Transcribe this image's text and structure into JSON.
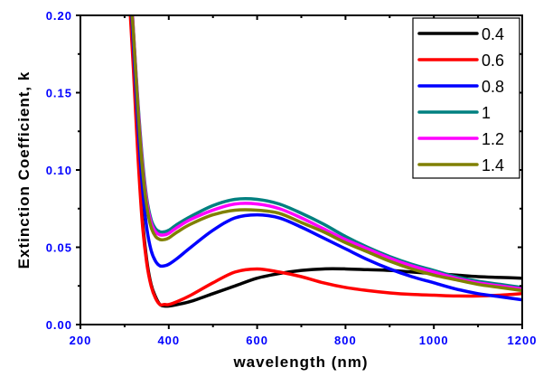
{
  "chart_data": {
    "type": "line",
    "title": "",
    "xlabel": "wavelength (nm)",
    "ylabel": "Extinction Coefficient, k",
    "xlim": [
      200,
      1200
    ],
    "ylim": [
      0.0,
      0.2
    ],
    "x_ticks": [
      200,
      400,
      600,
      800,
      1000,
      1200
    ],
    "x_tick_labels": [
      "200",
      "400",
      "600",
      "800",
      "1000",
      "1200"
    ],
    "y_ticks": [
      0.0,
      0.05,
      0.1,
      0.15,
      0.2
    ],
    "y_tick_labels": [
      "0.00",
      "0.05",
      "0.10",
      "0.15",
      "0.20"
    ],
    "grid": false,
    "legend_position": "top-right",
    "series": [
      {
        "name": "0.4",
        "color": "#000000",
        "x": [
          315,
          320,
          330,
          340,
          350,
          360,
          370,
          380,
          390,
          400,
          420,
          450,
          500,
          550,
          600,
          650,
          700,
          750,
          800,
          850,
          900,
          950,
          1000,
          1050,
          1100,
          1150,
          1200
        ],
        "y": [
          0.2,
          0.17,
          0.115,
          0.07,
          0.042,
          0.026,
          0.018,
          0.013,
          0.012,
          0.012,
          0.013,
          0.015,
          0.02,
          0.025,
          0.03,
          0.033,
          0.035,
          0.036,
          0.036,
          0.0355,
          0.035,
          0.034,
          0.033,
          0.032,
          0.031,
          0.0305,
          0.03
        ]
      },
      {
        "name": "0.6",
        "color": "#ff0000",
        "x": [
          313,
          320,
          330,
          340,
          350,
          360,
          370,
          380,
          390,
          400,
          420,
          450,
          500,
          550,
          600,
          650,
          700,
          750,
          800,
          850,
          900,
          950,
          1000,
          1050,
          1100,
          1150,
          1200
        ],
        "y": [
          0.2,
          0.165,
          0.11,
          0.066,
          0.04,
          0.025,
          0.017,
          0.013,
          0.013,
          0.013,
          0.015,
          0.019,
          0.027,
          0.034,
          0.036,
          0.034,
          0.031,
          0.027,
          0.024,
          0.022,
          0.0205,
          0.0195,
          0.019,
          0.0185,
          0.0185,
          0.019,
          0.02
        ]
      },
      {
        "name": "0.8",
        "color": "#0000ff",
        "x": [
          316,
          320,
          330,
          340,
          350,
          360,
          370,
          380,
          390,
          400,
          420,
          450,
          500,
          550,
          600,
          650,
          700,
          750,
          800,
          850,
          900,
          950,
          1000,
          1050,
          1100,
          1150,
          1200
        ],
        "y": [
          0.2,
          0.18,
          0.13,
          0.09,
          0.063,
          0.048,
          0.041,
          0.038,
          0.038,
          0.039,
          0.043,
          0.05,
          0.061,
          0.069,
          0.071,
          0.069,
          0.063,
          0.056,
          0.049,
          0.042,
          0.036,
          0.031,
          0.027,
          0.023,
          0.02,
          0.018,
          0.016
        ]
      },
      {
        "name": "1",
        "color": "#008080",
        "x": [
          318,
          320,
          330,
          340,
          350,
          360,
          370,
          380,
          390,
          400,
          420,
          450,
          500,
          550,
          600,
          650,
          700,
          750,
          800,
          850,
          900,
          950,
          1000,
          1050,
          1100,
          1150,
          1200
        ],
        "y": [
          0.2,
          0.19,
          0.145,
          0.108,
          0.082,
          0.068,
          0.062,
          0.06,
          0.06,
          0.061,
          0.065,
          0.07,
          0.077,
          0.081,
          0.081,
          0.078,
          0.072,
          0.065,
          0.057,
          0.05,
          0.044,
          0.039,
          0.035,
          0.031,
          0.028,
          0.026,
          0.024
        ]
      },
      {
        "name": "1.2",
        "color": "#ff00ff",
        "x": [
          318,
          320,
          330,
          340,
          350,
          360,
          370,
          380,
          390,
          400,
          420,
          450,
          500,
          550,
          600,
          650,
          700,
          750,
          800,
          850,
          900,
          950,
          1000,
          1050,
          1100,
          1150,
          1200
        ],
        "y": [
          0.2,
          0.19,
          0.143,
          0.105,
          0.08,
          0.066,
          0.06,
          0.058,
          0.058,
          0.059,
          0.063,
          0.068,
          0.074,
          0.078,
          0.078,
          0.075,
          0.069,
          0.062,
          0.055,
          0.049,
          0.043,
          0.038,
          0.034,
          0.03,
          0.027,
          0.025,
          0.023
        ]
      },
      {
        "name": "1.4",
        "color": "#808000",
        "x": [
          317,
          320,
          330,
          340,
          350,
          360,
          370,
          380,
          390,
          400,
          420,
          450,
          500,
          550,
          600,
          650,
          700,
          750,
          800,
          850,
          900,
          950,
          1000,
          1050,
          1100,
          1150,
          1200
        ],
        "y": [
          0.2,
          0.188,
          0.14,
          0.102,
          0.077,
          0.063,
          0.057,
          0.055,
          0.055,
          0.056,
          0.06,
          0.065,
          0.071,
          0.074,
          0.074,
          0.072,
          0.066,
          0.06,
          0.053,
          0.047,
          0.041,
          0.036,
          0.032,
          0.029,
          0.026,
          0.024,
          0.022
        ]
      }
    ]
  }
}
